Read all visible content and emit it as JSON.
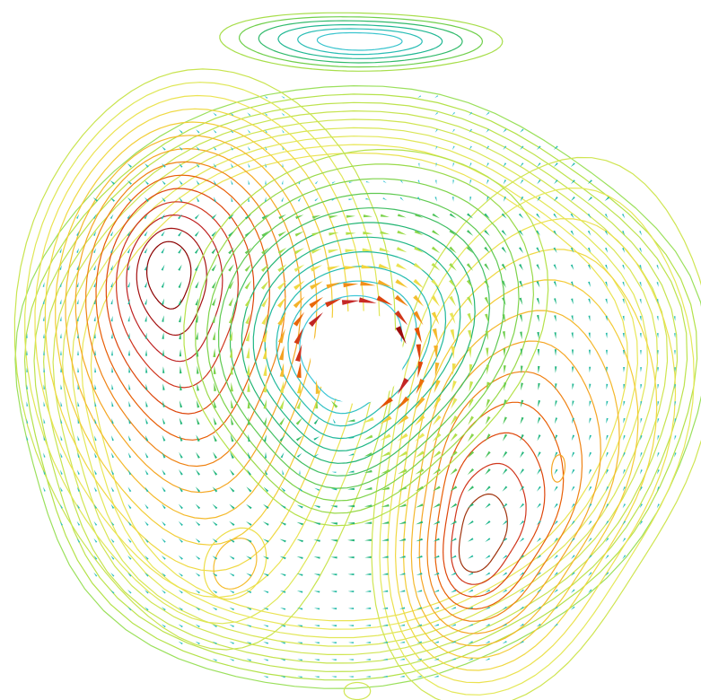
{
  "figure": {
    "kind": "flow-field",
    "background": "#ffffff",
    "overlays": [
      "contour-lines",
      "velocity-vectors"
    ]
  },
  "colormap": [
    "#8b0000",
    "#c62828",
    "#e65100",
    "#f5a623",
    "#f2d33a",
    "#e8e85a",
    "#b5e24a",
    "#6fcf4a",
    "#22b573",
    "#1fb9a6",
    "#3fc7d8"
  ],
  "colors": {
    "obstacle": "#ffffff",
    "outer_contour": "#9be05c",
    "vortex_core_left": "#8b0000",
    "vortex_core_right": "#a0340e",
    "high_velocity_vectors": "#d81b1b",
    "low_velocity_vectors": "#3fc7d8"
  }
}
